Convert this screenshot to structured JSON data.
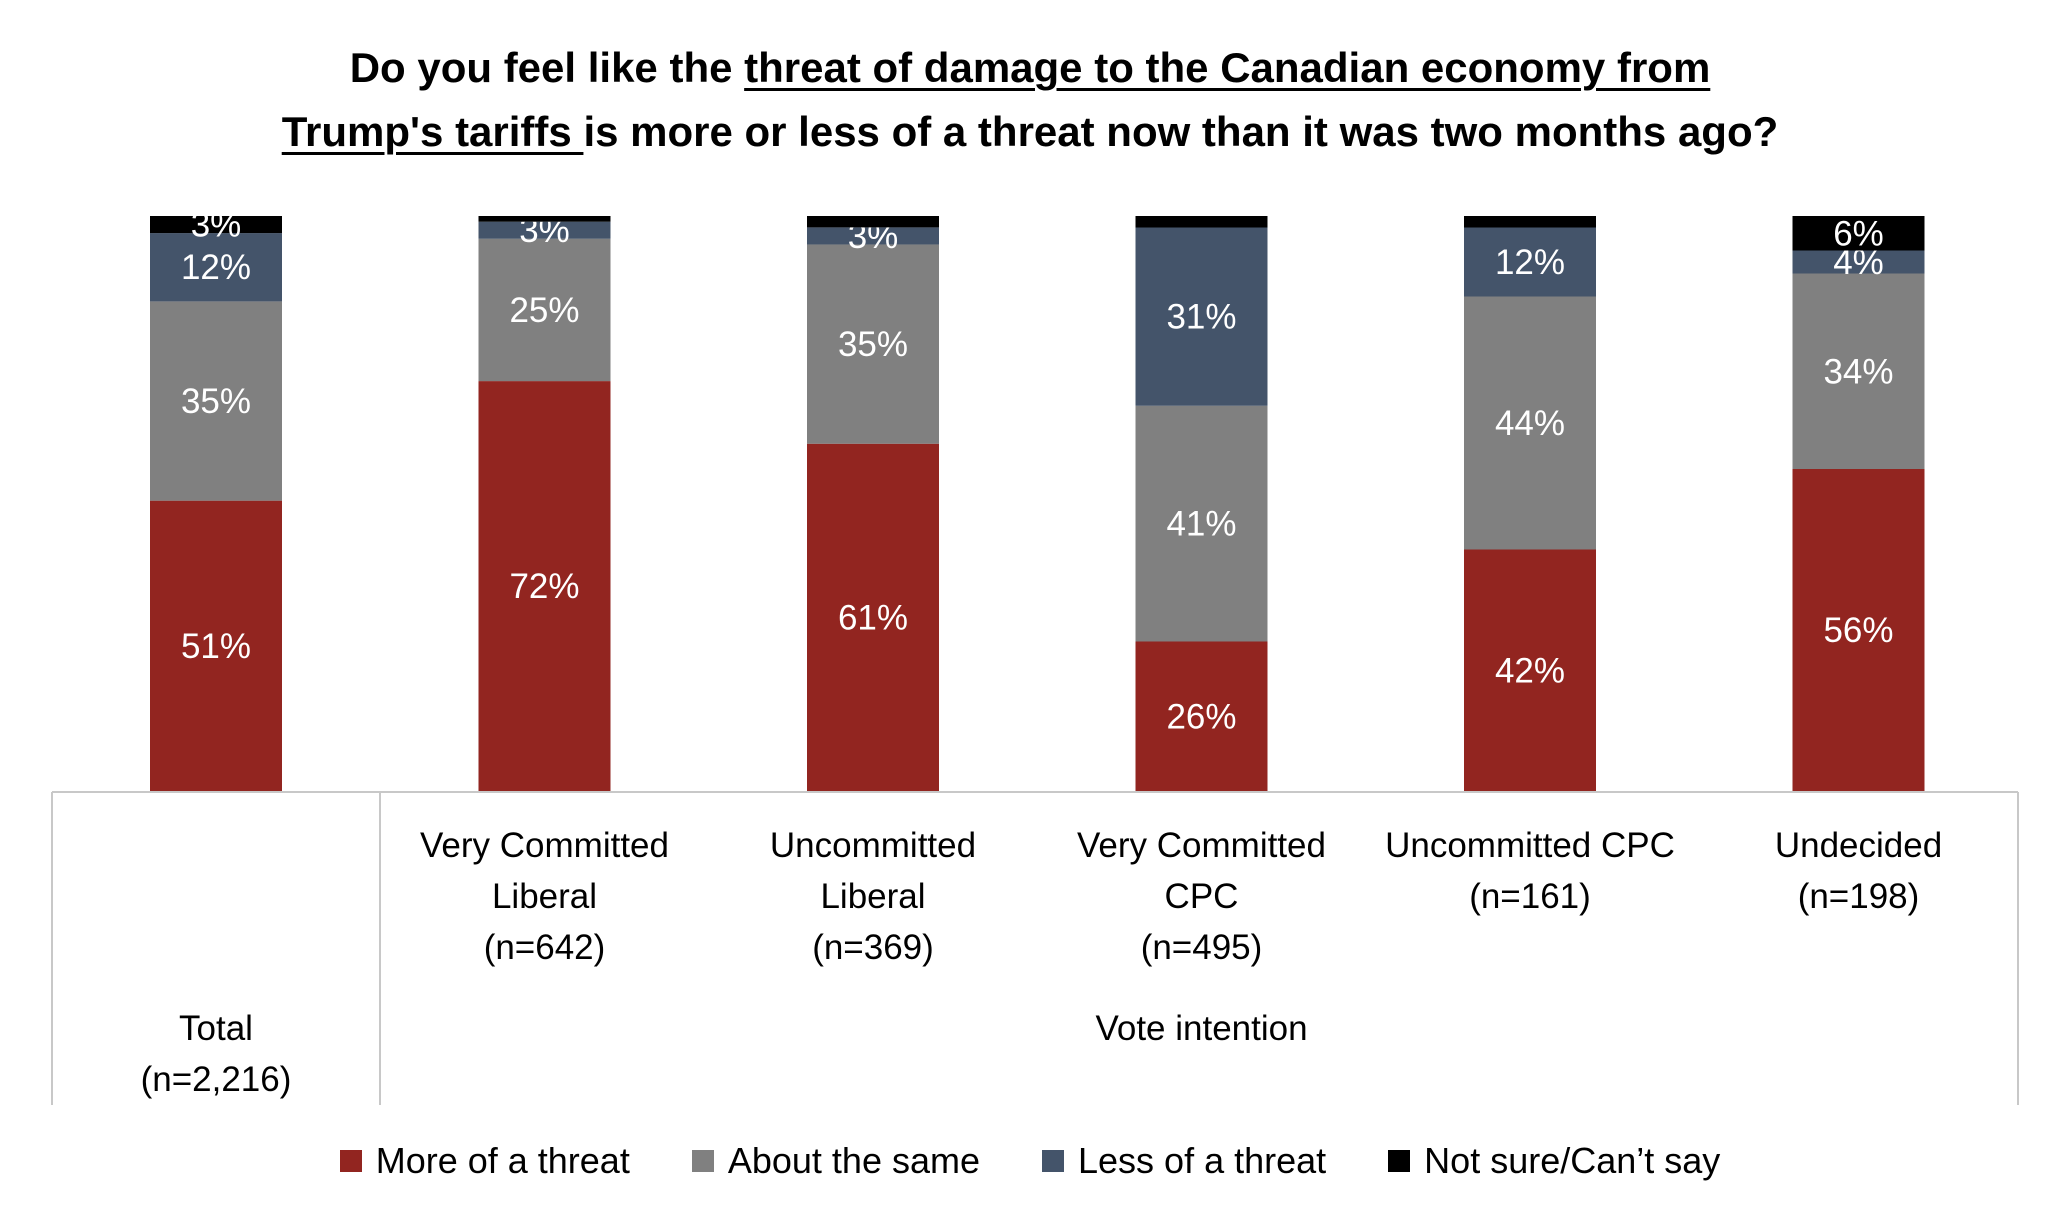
{
  "chart_data": {
    "type": "bar",
    "stacked": true,
    "orientation": "vertical",
    "title": {
      "plain_1": "Do you feel like the ",
      "underlined_1": "threat of damage to the Canadian economy from",
      "underlined_2": "Trump's tariffs ",
      "plain_2": "is more or less of a threat now than it was two months ago?"
    },
    "categories": [
      [
        "Total",
        "(n=2,216)"
      ],
      [
        "Very Committed",
        "Liberal",
        "(n=642)"
      ],
      [
        "Uncommitted",
        "Liberal",
        "(n=369)"
      ],
      [
        "Very Committed",
        "CPC",
        "(n=495)"
      ],
      [
        "Uncommitted CPC",
        "(n=161)"
      ],
      [
        "Undecided",
        "(n=198)"
      ]
    ],
    "group_label": "Vote intention",
    "ylim": [
      0,
      100
    ],
    "grid": false,
    "legend_position": "bottom",
    "series": [
      {
        "name": "More of a threat",
        "color": "#922520",
        "values": [
          51,
          72,
          61,
          26,
          42,
          56
        ]
      },
      {
        "name": "About the same",
        "color": "#808080",
        "values": [
          35,
          25,
          35,
          41,
          44,
          34
        ]
      },
      {
        "name": "Less of a threat",
        "color": "#44546A",
        "values": [
          12,
          3,
          3,
          31,
          12,
          4
        ]
      },
      {
        "name": "Not sure/Can’t say",
        "color": "#000000",
        "values": [
          3,
          1,
          2,
          2,
          2,
          6
        ]
      }
    ],
    "data_labels": [
      [
        "51%",
        "35%",
        "12%",
        "3%"
      ],
      [
        "72%",
        "25%",
        "3%",
        ""
      ],
      [
        "61%",
        "35%",
        "3%",
        ""
      ],
      [
        "26%",
        "41%",
        "31%",
        ""
      ],
      [
        "42%",
        "44%",
        "12%",
        ""
      ],
      [
        "56%",
        "34%",
        "4%",
        "6%"
      ]
    ]
  }
}
